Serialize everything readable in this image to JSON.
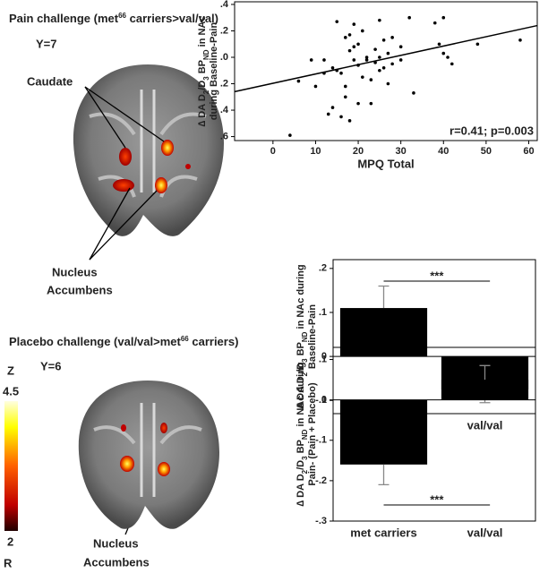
{
  "figure": {
    "panels": [
      {
        "title": [
          "Pain challenge (met",
          "66",
          " carriers>val/val)"
        ],
        "slice": "Y=7",
        "labels": [
          "Caudate",
          "Nucleus",
          "Accumbens"
        ]
      },
      {
        "title": [
          "Placebo challenge (val/val>met",
          "66",
          " carriers)"
        ],
        "slice": "Y=6",
        "labels": [
          "Nucleus",
          "Accumbens"
        ]
      }
    ],
    "colorbar": {
      "label": "Z",
      "max": 4.5,
      "min": 2
    },
    "side": "R"
  },
  "chart_data": [
    {
      "type": "scatter",
      "x_label": "MPQ Total",
      "y_label": [
        [
          "∆ DA D",
          "2",
          "/D",
          "3",
          " BP",
          "ND",
          " in NAc"
        ],
        "during Baseline-Pain"
      ],
      "x": [
        4,
        6,
        9,
        10,
        12,
        12,
        13,
        14,
        14,
        15,
        15,
        16,
        16,
        17,
        17,
        17,
        18,
        18,
        18,
        19,
        19,
        19,
        20,
        20,
        20,
        21,
        21,
        22,
        22,
        23,
        23,
        24,
        24,
        25,
        25,
        25,
        26,
        26,
        27,
        27,
        28,
        28,
        30,
        30,
        32,
        33,
        38,
        39,
        40,
        40,
        41,
        42,
        48,
        58
      ],
      "values": [
        -0.59,
        -0.18,
        -0.02,
        -0.22,
        -0.02,
        -0.12,
        -0.43,
        -0.08,
        -0.38,
        0.27,
        -0.1,
        -0.12,
        -0.45,
        0.15,
        -0.3,
        -0.22,
        0.05,
        0.17,
        -0.48,
        0.08,
        0.25,
        -0.02,
        0.1,
        -0.35,
        -0.06,
        0.2,
        -0.15,
        -0.02,
        0.0,
        -0.17,
        -0.35,
        0.06,
        -0.04,
        0.0,
        0.28,
        -0.1,
        -0.08,
        0.13,
        -0.2,
        0.03,
        0.15,
        -0.05,
        0.08,
        -0.02,
        0.3,
        -0.27,
        0.26,
        0.1,
        0.03,
        0.3,
        0.0,
        -0.05,
        0.1,
        0.13
      ],
      "color": "#000000",
      "trendline": {
        "x": [
          -9,
          62
        ],
        "y": [
          -0.26,
          0.24
        ]
      },
      "annotation": "r=0.41; p=0.003",
      "xlim": [
        -9,
        62
      ],
      "xticks": [
        0,
        10,
        20,
        30,
        40,
        50,
        60
      ],
      "ylim": [
        -0.63,
        0.42
      ],
      "yticks": [
        {
          "value": 0.4,
          "label": ".4"
        },
        {
          "value": 0.2,
          "label": ".2"
        },
        {
          "value": 0,
          "label": ".0"
        },
        {
          "value": -0.2,
          "label": ".2"
        },
        {
          "value": -0.4,
          "label": ".4"
        },
        {
          "value": -0.6,
          "label": ".6"
        }
      ]
    },
    {
      "type": "bar",
      "y_label": [
        [
          "∆ DA D",
          "2",
          "/D",
          "3",
          " BP",
          "ND",
          " in NAc during"
        ],
        "Baseline-Pain"
      ],
      "categories": [
        "met carriers",
        "val/val"
      ],
      "values": [
        0.11,
        -0.075
      ],
      "errors": [
        0.05,
        0.03
      ],
      "color": "#000000",
      "annotation": "***",
      "ylim": [
        -0.13,
        0.22
      ],
      "yticks": [
        {
          "value": 0.2,
          "label": ".2"
        },
        {
          "value": 0.1,
          "label": ".1"
        },
        0,
        {
          "value": -0.1,
          "label": "-.1"
        }
      ]
    },
    {
      "type": "bar",
      "y_label": [
        [
          "∆ DA D",
          "2",
          "/D",
          "3",
          " BP",
          "ND",
          " in NAc during"
        ],
        "Pain- (Pain + Placebo)"
      ],
      "categories": [
        "met carriers",
        "val/val"
      ],
      "values": [
        -0.16,
        0.05
      ],
      "errors": [
        0.05,
        0.035
      ],
      "color": "#000000",
      "annotation": "***",
      "ylim": [
        -0.3,
        0.13
      ],
      "yticks": [
        {
          "value": 0.1,
          "label": ".1"
        },
        0,
        {
          "value": -0.1,
          "label": "-.1"
        },
        {
          "value": -0.2,
          "label": "-.2"
        },
        {
          "value": -0.3,
          "label": "-.3"
        }
      ]
    }
  ]
}
